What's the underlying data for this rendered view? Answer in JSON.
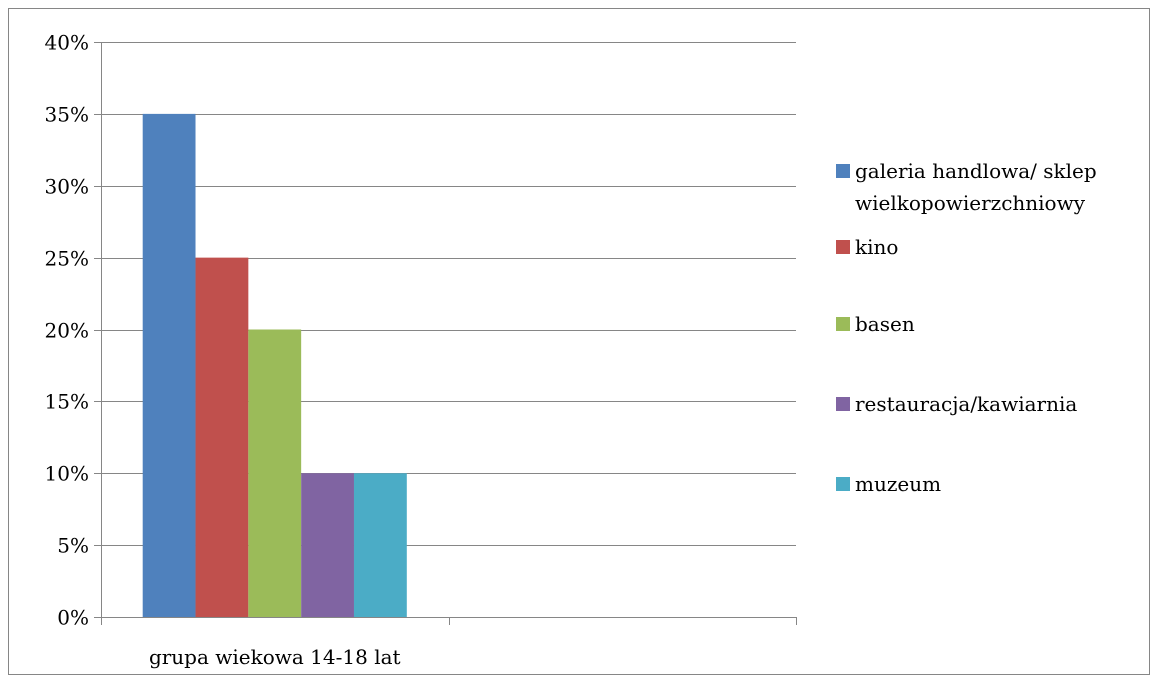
{
  "chart_data": {
    "type": "bar",
    "categories": [
      "grupa wiekowa 14-18 lat",
      ""
    ],
    "series": [
      {
        "name": "galeria handlowa/ sklep wielkopowierzchniowy",
        "name_lines": [
          "galeria handlowa/ sklep",
          "wielkopowierzchniowy"
        ],
        "color": "#4F81BD",
        "values": [
          0.35,
          null
        ]
      },
      {
        "name": "kino",
        "name_lines": [
          "kino"
        ],
        "color": "#C0504D",
        "values": [
          0.25,
          null
        ]
      },
      {
        "name": "basen",
        "name_lines": [
          "basen"
        ],
        "color": "#9BBB59",
        "values": [
          0.2,
          null
        ]
      },
      {
        "name": "restauracja/kawiarnia",
        "name_lines": [
          "restauracja/kawiarnia"
        ],
        "color": "#8064A2",
        "values": [
          0.1,
          null
        ]
      },
      {
        "name": "muzeum",
        "name_lines": [
          "muzeum"
        ],
        "color": "#4BACC6",
        "values": [
          0.1,
          null
        ]
      }
    ],
    "ylim": [
      0,
      0.4
    ],
    "yticks": [
      0,
      0.05,
      0.1,
      0.15,
      0.2,
      0.25,
      0.3,
      0.35,
      0.4
    ],
    "ytick_labels": [
      "0%",
      "5%",
      "10%",
      "15%",
      "20%",
      "25%",
      "30%",
      "35%",
      "40%"
    ],
    "title": "",
    "xlabel": "",
    "ylabel": "",
    "grid": true,
    "legend_position": "right",
    "gridline_color": "#868686",
    "axis_color": "#868686",
    "border_color": "#868686"
  }
}
